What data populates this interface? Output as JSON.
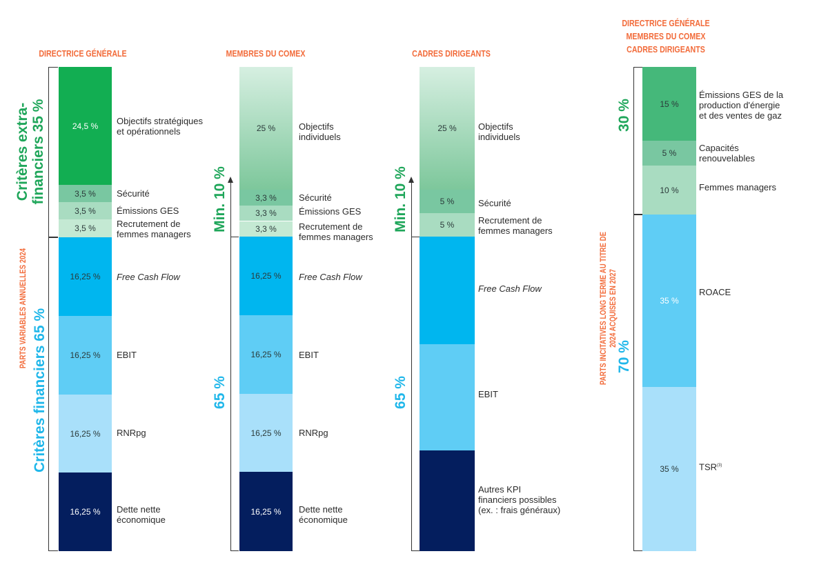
{
  "chart_data": [
    {
      "type": "stacked-bar",
      "title": "DIRECTRICE GÉNÉRALE",
      "groups": [
        {
          "name": "Critères extra-financiers 35 %",
          "total": "35 %"
        },
        {
          "name": "Critères financiers 65 %",
          "total": "65 %"
        }
      ],
      "segments": [
        {
          "label": "Objectifs stratégiques et opérationnels",
          "value": 24.5,
          "text": "24,5 %"
        },
        {
          "label": "Sécurité",
          "value": 3.5,
          "text": "3,5 %"
        },
        {
          "label": "Émissions GES",
          "value": 3.5,
          "text": "3,5 %"
        },
        {
          "label": "Recrutement de femmes managers",
          "value": 3.5,
          "text": "3,5 %"
        },
        {
          "label": "Free Cash Flow",
          "value": 16.25,
          "text": "16,25 %"
        },
        {
          "label": "EBIT",
          "value": 16.25,
          "text": "16,25 %"
        },
        {
          "label": "RNRpg",
          "value": 16.25,
          "text": "16,25 %"
        },
        {
          "label": "Dette nette économique",
          "value": 16.25,
          "text": "16,25 %"
        }
      ]
    },
    {
      "type": "stacked-bar",
      "title": "MEMBRES DU COMEX",
      "groups": [
        {
          "name": "Min. 10 %",
          "total": "Min. 10 %"
        },
        {
          "name": "65 %",
          "total": "65 %"
        }
      ],
      "segments": [
        {
          "label": "Objectifs individuels",
          "value": 25,
          "text": "25 %"
        },
        {
          "label": "Sécurité",
          "value": 3.3,
          "text": "3,3 %"
        },
        {
          "label": "Émissions GES",
          "value": 3.3,
          "text": "3,3 %"
        },
        {
          "label": "Recrutement de femmes managers",
          "value": 3.3,
          "text": "3,3 %"
        },
        {
          "label": "Free Cash Flow",
          "value": 16.25,
          "text": "16,25 %"
        },
        {
          "label": "EBIT",
          "value": 16.25,
          "text": "16,25 %"
        },
        {
          "label": "RNRpg",
          "value": 16.25,
          "text": "16,25 %"
        },
        {
          "label": "Dette nette économique",
          "value": 16.25,
          "text": "16,25 %"
        }
      ]
    },
    {
      "type": "stacked-bar",
      "title": "CADRES DIRIGEANTS",
      "groups": [
        {
          "name": "Min. 10 %",
          "total": "Min. 10 %"
        },
        {
          "name": "65 %",
          "total": "65 %"
        }
      ],
      "segments": [
        {
          "label": "Objectifs individuels",
          "value": 25,
          "text": "25 %"
        },
        {
          "label": "Sécurité",
          "value": 5,
          "text": "5 %"
        },
        {
          "label": "Recrutement de femmes managers",
          "value": 5,
          "text": "5 %"
        },
        {
          "label": "Free Cash Flow",
          "value": null,
          "text": ""
        },
        {
          "label": "EBIT",
          "value": null,
          "text": ""
        },
        {
          "label": "Autres KPI financiers possibles (ex. : frais généraux)",
          "value": null,
          "text": ""
        }
      ]
    },
    {
      "type": "stacked-bar",
      "title": "DIRECTRICE GÉNÉRALE MEMBRES DU COMEX CADRES DIRIGEANTS",
      "groups": [
        {
          "name": "30 %",
          "total": "30 %"
        },
        {
          "name": "70 %",
          "total": "70 %"
        }
      ],
      "segments": [
        {
          "label": "Émissions GES de la production d'énergie et des ventes de gaz",
          "value": 15,
          "text": "15 %"
        },
        {
          "label": "Capacités renouvelables",
          "value": 5,
          "text": "5 %"
        },
        {
          "label": "Femmes managers",
          "value": 10,
          "text": "10 %"
        },
        {
          "label": "ROACE",
          "value": 35,
          "text": "35 %"
        },
        {
          "label": "TSR",
          "value": 35,
          "text": "35 %"
        }
      ]
    }
  ],
  "side_labels": {
    "annual": "PARTS VARIABLES ANNUELLES 2024",
    "long_term": "PARTS INCITATIVES LONG TERME AU TITRE DE 2024 ACQUISES EN 2027"
  },
  "titles": {
    "c1": "DIRECTRICE GÉNÉRALE",
    "c2": "MEMBRES DU COMEX",
    "c3": "CADRES DIRIGEANTS",
    "c4_line1": "DIRECTRICE GÉNÉRALE",
    "c4_line2": "MEMBRES DU COMEX",
    "c4_line3": "CADRES DIRIGEANTS"
  },
  "group_labels": {
    "c1_extra_line1": "Critères extra-",
    "c1_extra_line2": "financiers 35 %",
    "c1_fin": "Critères financiers 65 %",
    "c2_extra": "Min. 10 %",
    "c2_fin": "65 %",
    "c3_extra": "Min. 10 %",
    "c3_fin": "65 %",
    "c4_extra": "30 %",
    "c4_fin": "70 %"
  },
  "labels": {
    "c1": {
      "s1_line1": "Objectifs stratégiques",
      "s1_line2": "et opérationnels",
      "s2": "Sécurité",
      "s3": "Émissions GES",
      "s4_line1": "Recrutement de",
      "s4_line2": "femmes managers",
      "s5": "Free Cash Flow",
      "s6": "EBIT",
      "s7": "RNRpg",
      "s8_line1": "Dette nette",
      "s8_line2": "économique"
    },
    "c2": {
      "s1_line1": "Objectifs",
      "s1_line2": "individuels",
      "s2": "Sécurité",
      "s3": "Émissions GES",
      "s4_line1": "Recrutement de",
      "s4_line2": "femmes managers",
      "s5": "Free Cash Flow",
      "s6": "EBIT",
      "s7": "RNRpg",
      "s8_line1": "Dette nette",
      "s8_line2": "économique"
    },
    "c3": {
      "s1_line1": "Objectifs",
      "s1_line2": "individuels",
      "s2": "Sécurité",
      "s3_line1": "Recrutement de",
      "s3_line2": "femmes managers",
      "s4": "Free Cash Flow",
      "s5": "EBIT",
      "s6_line1": "Autres KPI",
      "s6_line2": "financiers possibles",
      "s6_line3": "(ex. : frais généraux)"
    },
    "c4": {
      "s1_line1": "Émissions GES de la",
      "s1_line2": "production d'énergie",
      "s1_line3": "et des ventes de gaz",
      "s2_line1": "Capacités",
      "s2_line2": "renouvelables",
      "s3": "Femmes managers",
      "s4": "ROACE",
      "s5": "TSR",
      "s5_sup": "(3)"
    }
  },
  "values": {
    "c1": [
      "24,5 %",
      "3,5 %",
      "3,5 %",
      "3,5 %",
      "16,25 %",
      "16,25 %",
      "16,25 %",
      "16,25 %"
    ],
    "c2": [
      "25 %",
      "3,3 %",
      "3,3 %",
      "3,3 %",
      "16,25 %",
      "16,25 %",
      "16,25 %",
      "16,25 %"
    ],
    "c3": [
      "25 %",
      "5 %",
      "5 %"
    ],
    "c4": [
      "15 %",
      "5 %",
      "10 %",
      "35 %",
      "35 %"
    ]
  },
  "colors": {
    "green_dark": "#12ae52",
    "green_mid": "#79c7a1",
    "green_light": "#a9dcc1",
    "green_pale": "#c4e9d3",
    "blue_bright": "#00b6ef",
    "blue_mid": "#5fcdf5",
    "blue_light": "#a9e0fa",
    "navy": "#041e5e",
    "orange": "#f26b3a",
    "title_green": "#1fa65a",
    "title_blue": "#20b7ea"
  }
}
